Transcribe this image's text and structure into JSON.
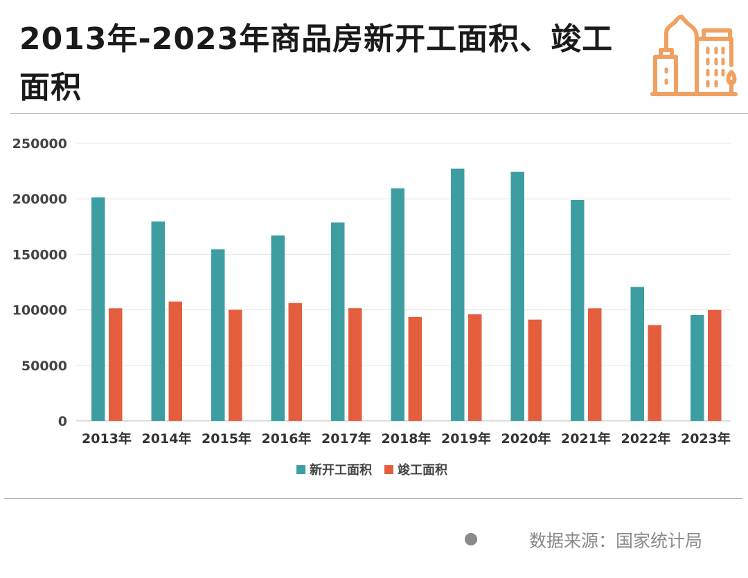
{
  "title": "2013年-2023年商品房新开工面积、竣工面积",
  "source": "数据来源：国家统计局",
  "icon": "city-buildings-icon",
  "colors": {
    "new_starts": "#3d9ea2",
    "completions": "#e45d3d",
    "accent": "#f0a060"
  },
  "chart_data": {
    "type": "bar",
    "title": "2013年-2023年商品房新开工面积、竣工面积",
    "categories": [
      "2013年",
      "2014年",
      "2015年",
      "2016年",
      "2017年",
      "2018年",
      "2019年",
      "2020年",
      "2021年",
      "2022年",
      "2023年"
    ],
    "series": [
      {
        "name": "新开工面积",
        "values": [
          201208,
          179592,
          154454,
          166928,
          178654,
          209342,
          227154,
          224433,
          198895,
          120587,
          95376
        ]
      },
      {
        "name": "竣工面积",
        "values": [
          101435,
          107459,
          100039,
          106128,
          101486,
          93550,
          95942,
          91218,
          101412,
          86222,
          99831
        ]
      }
    ],
    "yticks": [
      "0",
      "50000",
      "100000",
      "150000",
      "200000",
      "250000"
    ],
    "ylim": [
      0,
      250000
    ],
    "xlabel": "",
    "ylabel": "",
    "grid": true,
    "legend": "bottom"
  }
}
